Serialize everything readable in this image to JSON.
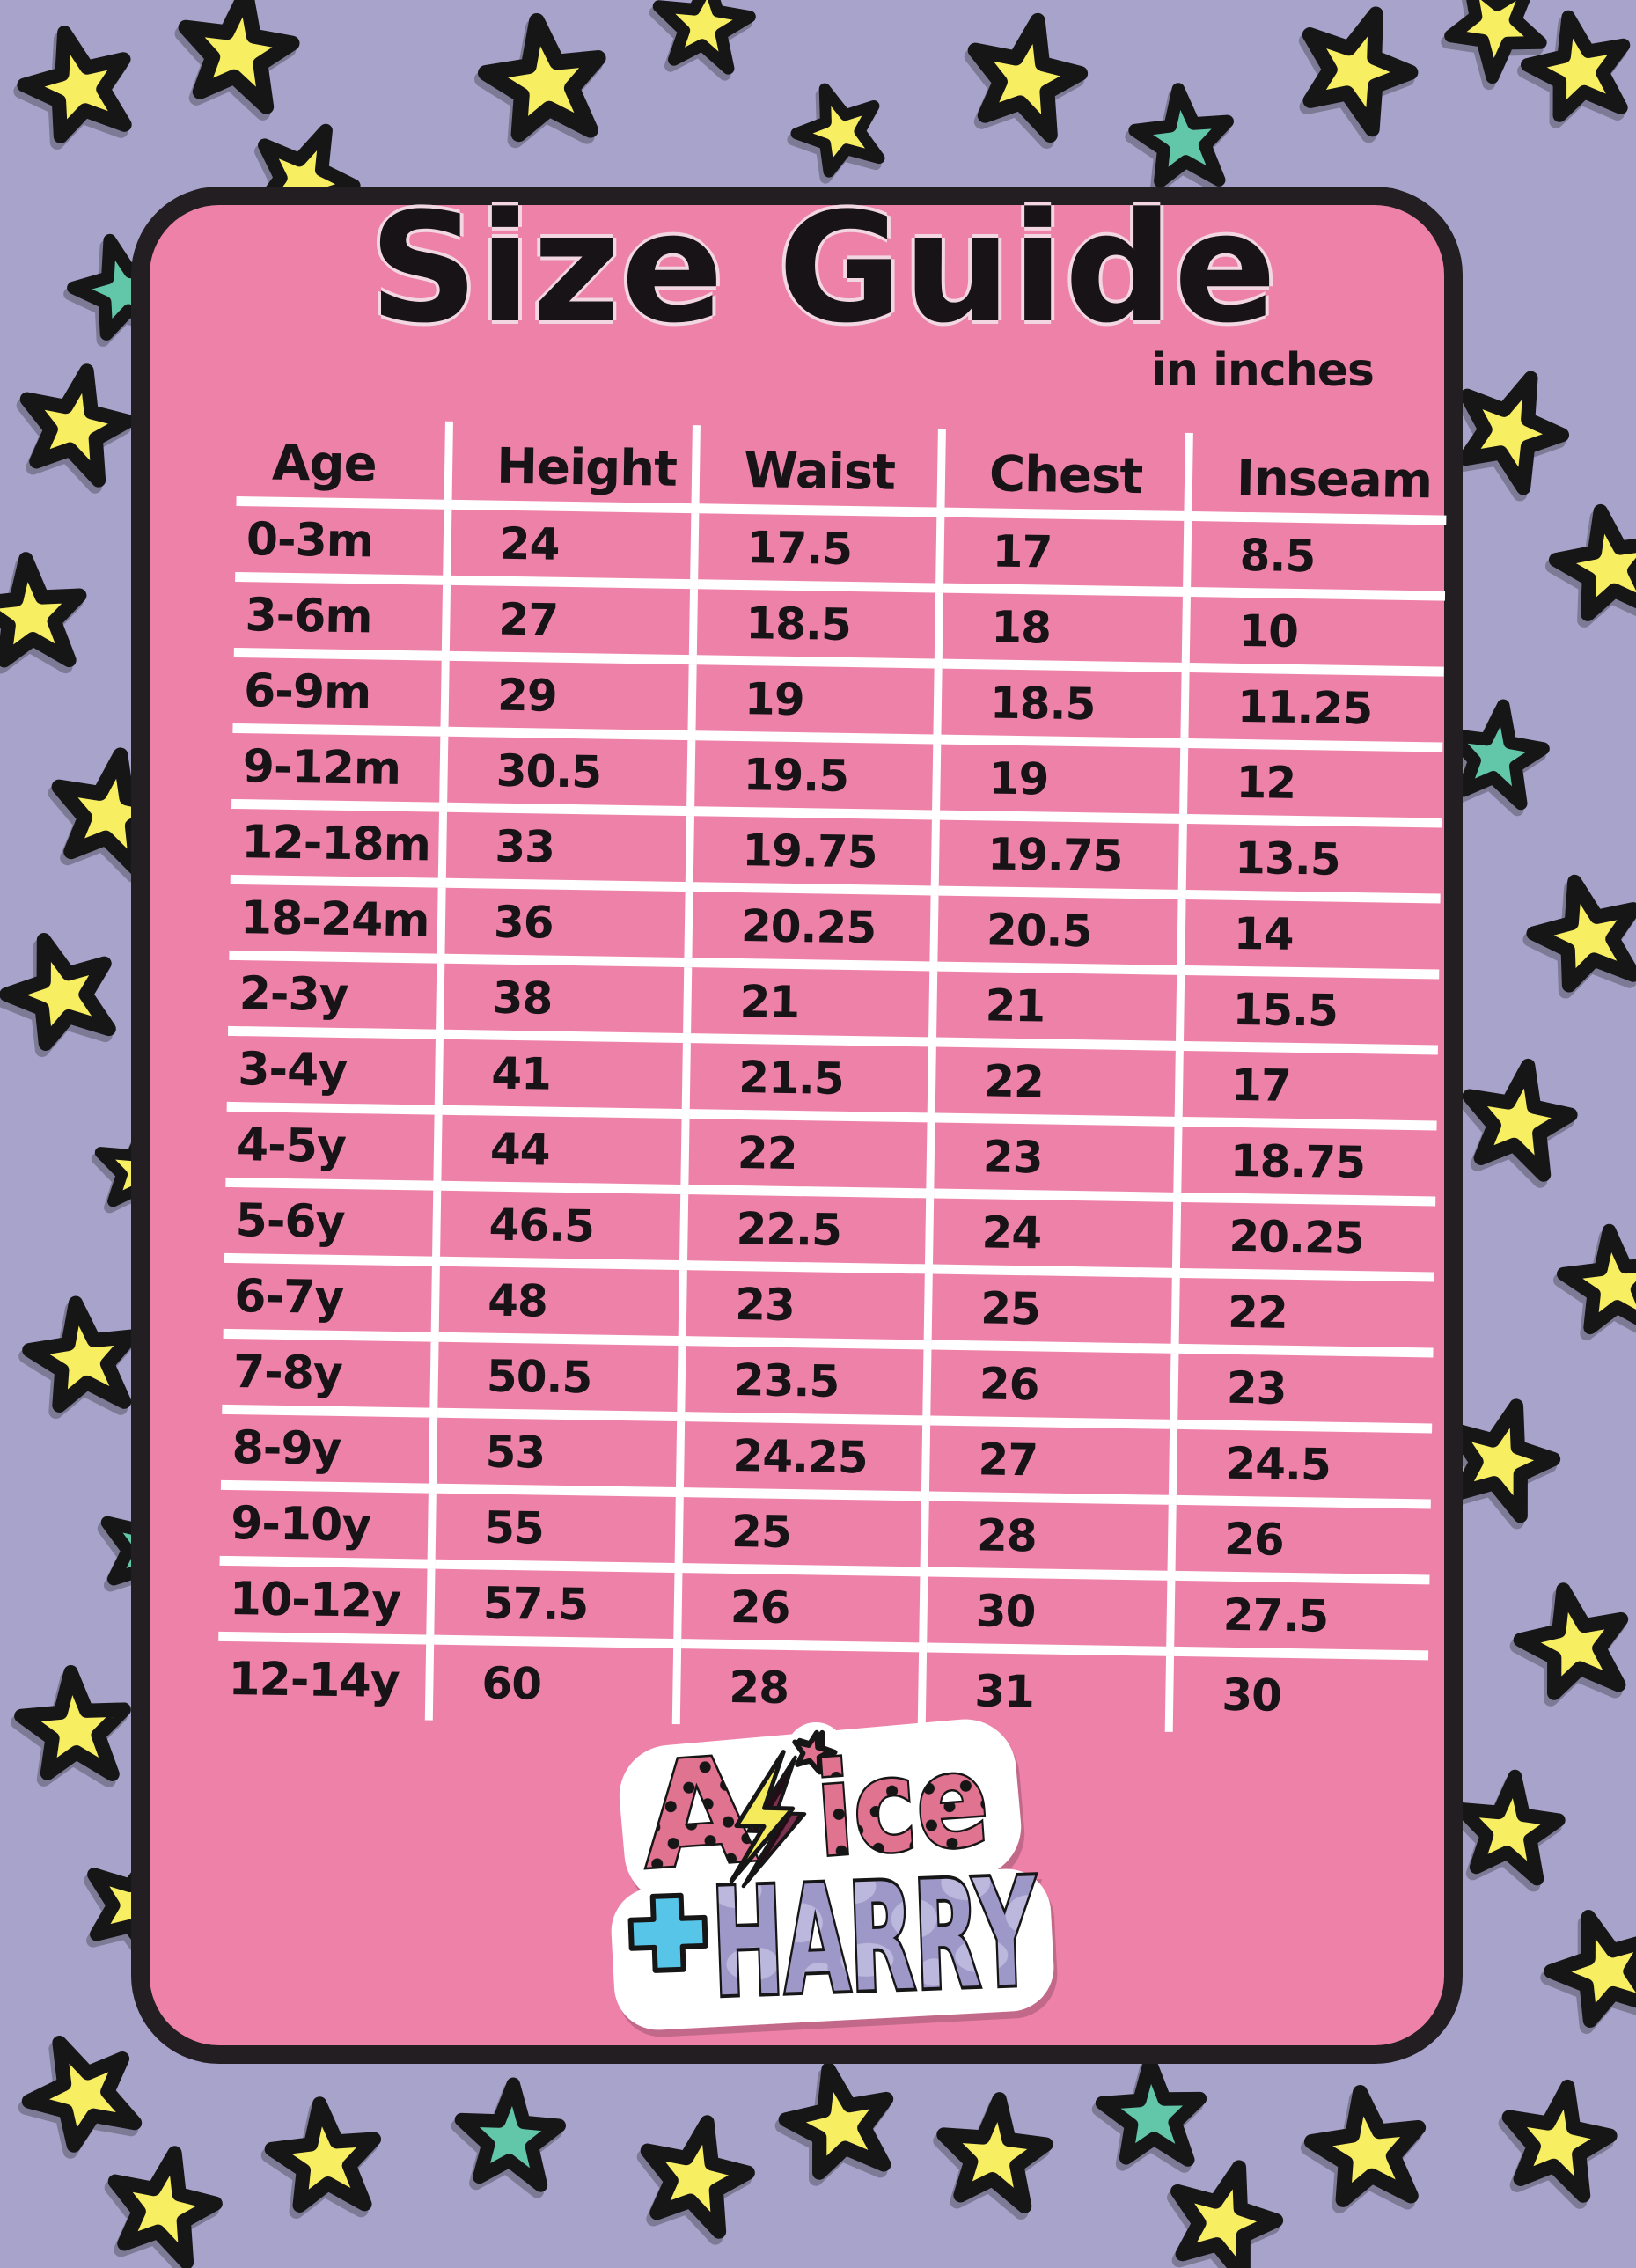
{
  "header": {
    "title": "Size Guide",
    "unit_note": "in inches"
  },
  "chart_data": {
    "type": "table",
    "title": "Size Guide",
    "unit_note": "in inches",
    "columns": [
      "Age",
      "Height",
      "Waist",
      "Chest",
      "Inseam"
    ],
    "rows": [
      [
        "0-3m",
        "24",
        "17.5",
        "17",
        "8.5"
      ],
      [
        "3-6m",
        "27",
        "18.5",
        "18",
        "10"
      ],
      [
        "6-9m",
        "29",
        "19",
        "18.5",
        "11.25"
      ],
      [
        "9-12m",
        "30.5",
        "19.5",
        "19",
        "12"
      ],
      [
        "12-18m",
        "33",
        "19.75",
        "19.75",
        "13.5"
      ],
      [
        "18-24m",
        "36",
        "20.25",
        "20.5",
        "14"
      ],
      [
        "2-3y",
        "38",
        "21",
        "21",
        "15.5"
      ],
      [
        "3-4y",
        "41",
        "21.5",
        "22",
        "17"
      ],
      [
        "4-5y",
        "44",
        "22",
        "23",
        "18.75"
      ],
      [
        "5-6y",
        "46.5",
        "22.5",
        "24",
        "20.25"
      ],
      [
        "6-7y",
        "48",
        "23",
        "25",
        "22"
      ],
      [
        "7-8y",
        "50.5",
        "23.5",
        "26",
        "23"
      ],
      [
        "8-9y",
        "53",
        "24.25",
        "27",
        "24.5"
      ],
      [
        "9-10y",
        "55",
        "25",
        "28",
        "26"
      ],
      [
        "10-12y",
        "57.5",
        "26",
        "30",
        "27.5"
      ],
      [
        "12-14y",
        "60",
        "28",
        "31",
        "30"
      ]
    ]
  },
  "logo": {
    "alice_a": "A",
    "alice_rest": "ice",
    "plus": "+",
    "harry": "HARRY"
  },
  "colors": {
    "background": "#a7a3cb",
    "panel": "#ee81a8",
    "outline": "#221e22",
    "grid_line": "#ffffff",
    "text": "#171317",
    "star_yellow": "#f7ee62",
    "star_teal": "#62c6a8",
    "star_outline": "#171317",
    "logo_sticker": "#ffffff",
    "logo_letter_pink": "#e0738f",
    "logo_dot_black": "#181418",
    "logo_bolt_yellow": "#f4ea5b",
    "logo_bolt_shadow": "#7c3150",
    "logo_plus_cyan": "#57c5e7",
    "logo_harry_purple": "#9d98c8",
    "logo_harry_spot": "#bcb7dc"
  }
}
